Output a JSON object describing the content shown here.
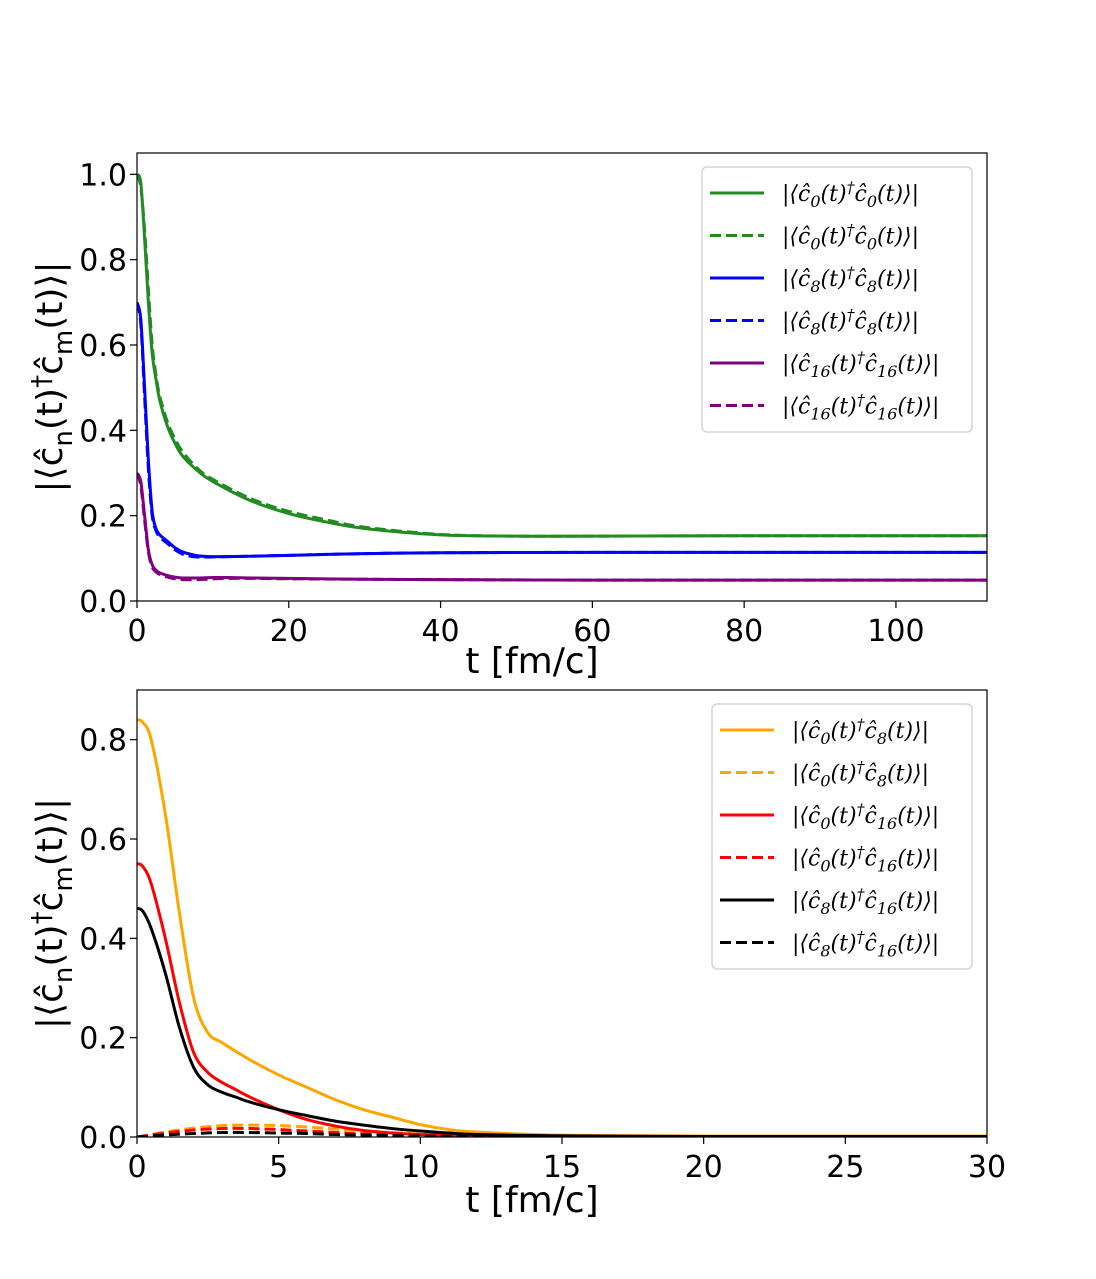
{
  "figure": {
    "background": "#ffffff"
  },
  "chart_data": [
    {
      "type": "line",
      "title": "",
      "xlabel": "t [fm/c]",
      "ylabel": "|⟨ĉn(t)†ĉm(t)⟩|",
      "ylabel_parts": {
        "open": "|⟨ĉ",
        "n": "n",
        "mid": "(t)",
        "dagger": "†",
        "c2": "ĉ",
        "m": "m",
        "close": "(t)⟩|"
      },
      "xlim": [
        0,
        112
      ],
      "ylim": [
        0,
        1.05
      ],
      "xticks": [
        0,
        20,
        40,
        60,
        80,
        100
      ],
      "xtick_labels": [
        "0",
        "20",
        "40",
        "60",
        "80",
        "100"
      ],
      "yticks": [
        0.0,
        0.2,
        0.4,
        0.6,
        0.8,
        1.0
      ],
      "ytick_labels": [
        "0.0",
        "0.2",
        "0.4",
        "0.6",
        "0.8",
        "1.0"
      ],
      "grid": false,
      "legend_position": "top-right",
      "series": [
        {
          "name": "|⟨ĉ0(t)†ĉ0(t)⟩|",
          "color": "#228B22",
          "dash": "solid",
          "x": [
            0,
            0.5,
            1,
            1.5,
            2,
            2.5,
            3,
            4,
            5,
            6,
            8,
            10,
            15,
            20,
            25,
            30,
            40,
            50,
            60,
            80,
            100,
            112
          ],
          "y": [
            1.0,
            0.98,
            0.85,
            0.7,
            0.58,
            0.52,
            0.47,
            0.41,
            0.37,
            0.34,
            0.305,
            0.28,
            0.235,
            0.205,
            0.185,
            0.17,
            0.155,
            0.152,
            0.152,
            0.153,
            0.153,
            0.153
          ]
        },
        {
          "name": "|⟨ĉ0(t)†ĉ0(t)⟩|",
          "color": "#228B22",
          "dash": "dashed",
          "x": [
            0,
            0.5,
            1,
            1.5,
            2,
            2.5,
            3,
            4,
            5,
            6,
            8,
            10,
            15,
            20,
            25,
            30,
            40,
            50,
            60,
            80,
            100,
            112
          ],
          "y": [
            1.0,
            0.97,
            0.87,
            0.73,
            0.6,
            0.53,
            0.48,
            0.42,
            0.38,
            0.35,
            0.31,
            0.285,
            0.24,
            0.21,
            0.19,
            0.173,
            0.156,
            0.152,
            0.152,
            0.153,
            0.153,
            0.153
          ]
        },
        {
          "name": "|⟨ĉ8(t)†ĉ8(t)⟩|",
          "color": "#0000ff",
          "dash": "solid",
          "x": [
            0,
            0.5,
            1,
            1.5,
            2,
            2.5,
            3,
            4,
            5,
            6,
            7,
            8,
            10,
            15,
            20,
            30,
            40,
            60,
            80,
            100,
            112
          ],
          "y": [
            0.7,
            0.66,
            0.5,
            0.33,
            0.21,
            0.17,
            0.155,
            0.14,
            0.125,
            0.115,
            0.11,
            0.106,
            0.104,
            0.105,
            0.107,
            0.111,
            0.113,
            0.114,
            0.114,
            0.114,
            0.114
          ]
        },
        {
          "name": "|⟨ĉ8(t)†ĉ8(t)⟩|",
          "color": "#0000ff",
          "dash": "dashed",
          "x": [
            0,
            0.5,
            1,
            1.5,
            2,
            2.5,
            3,
            4,
            5,
            6,
            7,
            8,
            10,
            15,
            20,
            30,
            40,
            60,
            80,
            100,
            112
          ],
          "y": [
            0.7,
            0.65,
            0.48,
            0.31,
            0.2,
            0.165,
            0.15,
            0.135,
            0.12,
            0.11,
            0.105,
            0.103,
            0.103,
            0.105,
            0.107,
            0.111,
            0.113,
            0.114,
            0.114,
            0.114,
            0.114
          ]
        },
        {
          "name": "|⟨ĉ16(t)†ĉ16(t)⟩|",
          "color": "#800080",
          "dash": "solid",
          "x": [
            0,
            0.5,
            1,
            1.5,
            2,
            2.5,
            3,
            4,
            5,
            6,
            8,
            10,
            12,
            15,
            20,
            30,
            40,
            60,
            80,
            100,
            112
          ],
          "y": [
            0.3,
            0.28,
            0.2,
            0.12,
            0.085,
            0.072,
            0.066,
            0.06,
            0.056,
            0.054,
            0.054,
            0.055,
            0.055,
            0.054,
            0.053,
            0.051,
            0.05,
            0.049,
            0.049,
            0.049,
            0.049
          ]
        },
        {
          "name": "|⟨ĉ16(t)†ĉ16(t)⟩|",
          "color": "#800080",
          "dash": "dashed",
          "x": [
            0,
            0.5,
            1,
            1.5,
            2,
            2.5,
            3,
            4,
            5,
            6,
            8,
            10,
            12,
            15,
            20,
            30,
            40,
            60,
            80,
            100,
            112
          ],
          "y": [
            0.3,
            0.27,
            0.19,
            0.115,
            0.08,
            0.068,
            0.062,
            0.056,
            0.052,
            0.05,
            0.05,
            0.052,
            0.053,
            0.053,
            0.052,
            0.051,
            0.05,
            0.049,
            0.049,
            0.049,
            0.049
          ]
        }
      ]
    },
    {
      "type": "line",
      "title": "",
      "xlabel": "t [fm/c]",
      "ylabel": "|⟨ĉn(t)†ĉm(t)⟩|",
      "ylabel_parts": {
        "open": "|⟨ĉ",
        "n": "n",
        "mid": "(t)",
        "dagger": "†",
        "c2": "ĉ",
        "m": "m",
        "close": "(t)⟩|"
      },
      "xlim": [
        0,
        30
      ],
      "ylim": [
        0,
        0.9
      ],
      "xticks": [
        0,
        5,
        10,
        15,
        20,
        25,
        30
      ],
      "xtick_labels": [
        "0",
        "5",
        "10",
        "15",
        "20",
        "25",
        "30"
      ],
      "yticks": [
        0.0,
        0.2,
        0.4,
        0.6,
        0.8
      ],
      "ytick_labels": [
        "0.0",
        "0.2",
        "0.4",
        "0.6",
        "0.8"
      ],
      "grid": false,
      "legend_position": "top-right",
      "series": [
        {
          "name": "|⟨ĉ0(t)†ĉ8(t)⟩|",
          "color": "#FFA500",
          "dash": "solid",
          "x": [
            0,
            0.2,
            0.5,
            1,
            1.5,
            2,
            2.5,
            3,
            4,
            5,
            6,
            7,
            8,
            9,
            10,
            11,
            12,
            14,
            16,
            20,
            25,
            30
          ],
          "y": [
            0.84,
            0.835,
            0.8,
            0.65,
            0.45,
            0.28,
            0.21,
            0.19,
            0.155,
            0.125,
            0.1,
            0.075,
            0.055,
            0.04,
            0.025,
            0.015,
            0.01,
            0.005,
            0.003,
            0.002,
            0.002,
            0.002
          ]
        },
        {
          "name": "|⟨ĉ0(t)†ĉ8(t)⟩|",
          "color": "#FFA500",
          "dash": "dashed",
          "x": [
            0,
            1,
            2,
            3,
            4,
            5,
            6,
            7,
            8,
            10,
            12,
            15,
            20,
            30
          ],
          "y": [
            0.0,
            0.01,
            0.018,
            0.023,
            0.024,
            0.023,
            0.02,
            0.016,
            0.012,
            0.006,
            0.003,
            0.001,
            0.0,
            0.0
          ]
        },
        {
          "name": "|⟨ĉ0(t)†ĉ16(t)⟩|",
          "color": "#ff0000",
          "dash": "solid",
          "x": [
            0,
            0.2,
            0.5,
            1,
            1.5,
            2,
            2.5,
            3,
            3.5,
            4,
            5,
            6,
            7,
            8,
            9,
            10,
            12,
            15,
            20,
            30
          ],
          "y": [
            0.55,
            0.545,
            0.51,
            0.4,
            0.27,
            0.17,
            0.13,
            0.11,
            0.095,
            0.08,
            0.055,
            0.035,
            0.022,
            0.013,
            0.008,
            0.005,
            0.002,
            0.001,
            0.0,
            0.0
          ]
        },
        {
          "name": "|⟨ĉ0(t)†ĉ16(t)⟩|",
          "color": "#ff0000",
          "dash": "dashed",
          "x": [
            0,
            1,
            2,
            3,
            4,
            5,
            6,
            7,
            8,
            10,
            12,
            15,
            20,
            30
          ],
          "y": [
            0.0,
            0.008,
            0.014,
            0.017,
            0.017,
            0.015,
            0.012,
            0.009,
            0.006,
            0.003,
            0.001,
            0.0,
            0.0,
            0.0
          ]
        },
        {
          "name": "|⟨ĉ8(t)†ĉ16(t)⟩|",
          "color": "#000000",
          "dash": "solid",
          "x": [
            0,
            0.2,
            0.5,
            1,
            1.5,
            2,
            2.5,
            3,
            3.5,
            4,
            5,
            6,
            7,
            8,
            9,
            10,
            11,
            12,
            14,
            16,
            20,
            30
          ],
          "y": [
            0.46,
            0.455,
            0.42,
            0.33,
            0.22,
            0.14,
            0.105,
            0.09,
            0.08,
            0.07,
            0.055,
            0.043,
            0.032,
            0.024,
            0.017,
            0.012,
            0.008,
            0.005,
            0.003,
            0.002,
            0.001,
            0.001
          ]
        },
        {
          "name": "|⟨ĉ8(t)†ĉ16(t)⟩|",
          "color": "#000000",
          "dash": "dashed",
          "x": [
            0,
            1,
            2,
            3,
            4,
            5,
            6,
            7,
            8,
            10,
            12,
            15,
            20,
            30
          ],
          "y": [
            0.0,
            0.004,
            0.007,
            0.009,
            0.009,
            0.008,
            0.007,
            0.005,
            0.004,
            0.002,
            0.001,
            0.0,
            0.0,
            0.0
          ]
        }
      ]
    }
  ]
}
